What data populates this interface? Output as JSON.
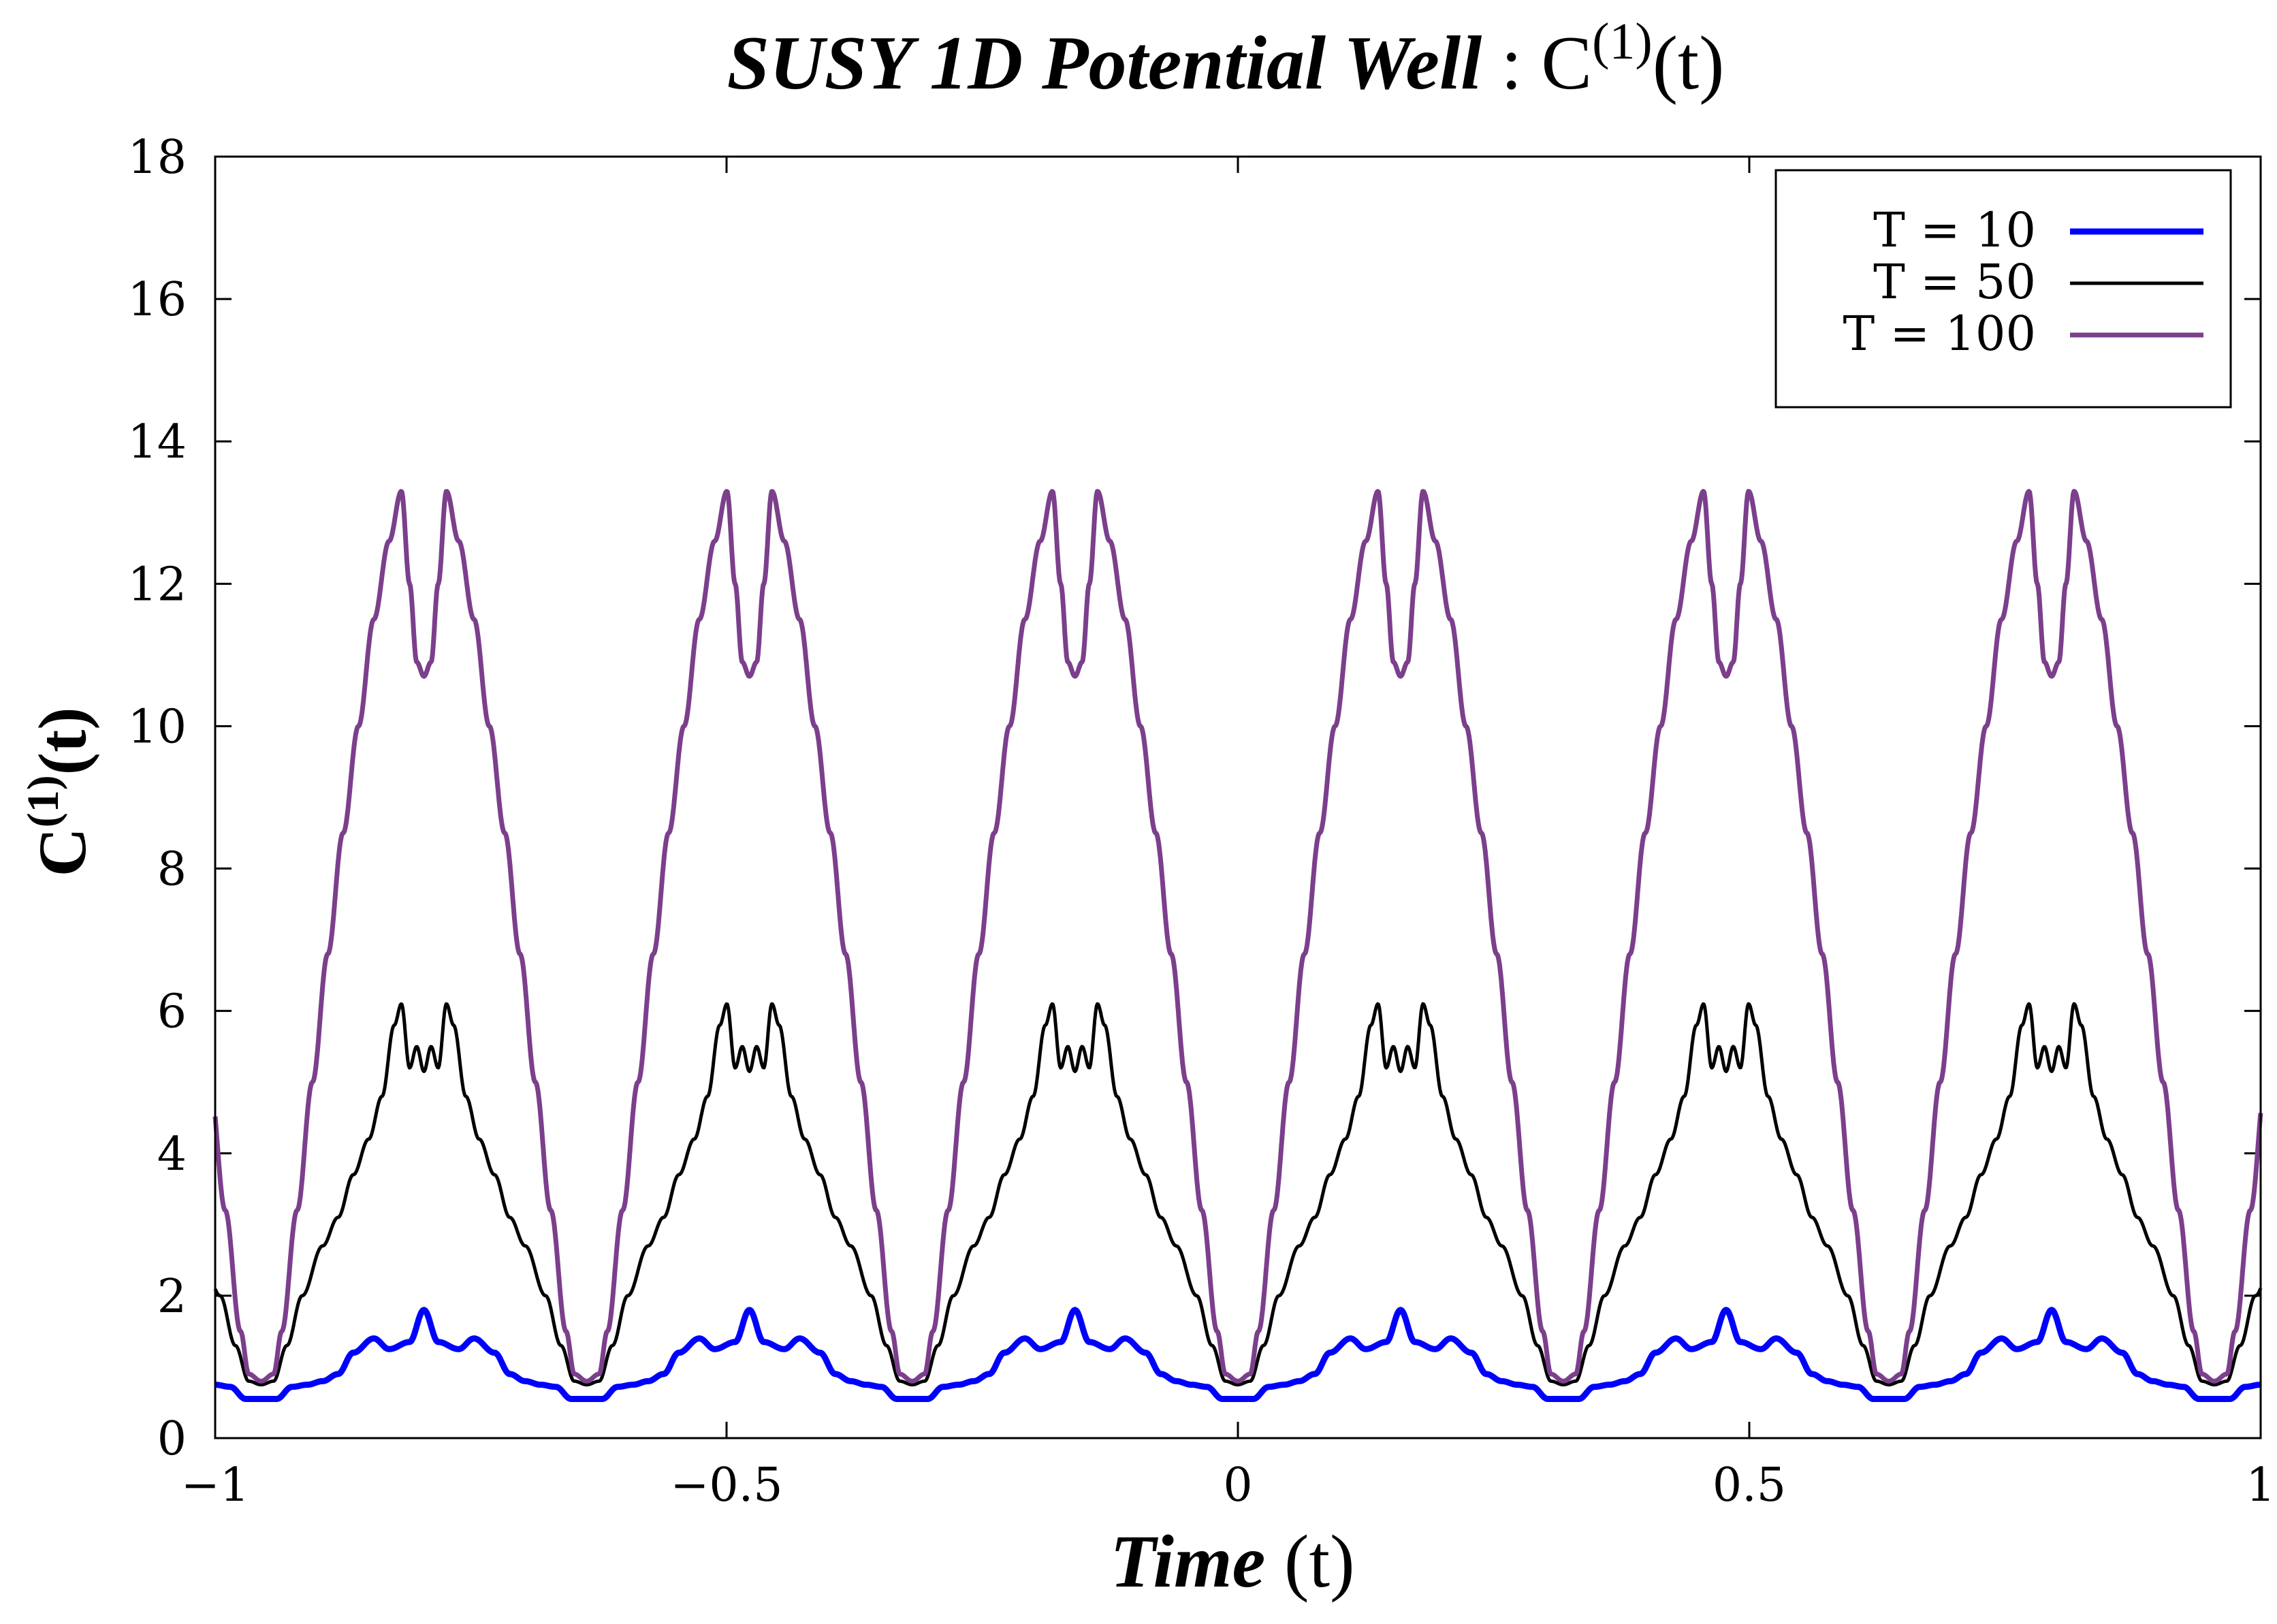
{
  "chart_data": {
    "type": "line",
    "title": {
      "italic": "SUSY 1D Potential Well",
      "separator": " : ",
      "main": "C",
      "superscript": "(1)",
      "suffix": "(t)"
    },
    "xlabel": {
      "italic": "Time",
      "rest": " (t)"
    },
    "ylabel": {
      "main": "C",
      "superscript": "(1)",
      "suffix": "(t)"
    },
    "xlim": [
      -1,
      1
    ],
    "ylim": [
      0,
      18
    ],
    "xticks": [
      -1,
      -0.5,
      0,
      0.5,
      1
    ],
    "xtick_labels": [
      "−1",
      "−0.5",
      "0",
      "0.5",
      "1"
    ],
    "yticks": [
      0,
      2,
      4,
      6,
      8,
      10,
      12,
      14,
      16,
      18
    ],
    "ytick_labels": [
      "0",
      "2",
      "4",
      "6",
      "8",
      "10",
      "12",
      "14",
      "16",
      "18"
    ],
    "grid": false,
    "legend_position": "top-right",
    "period": 0.3183,
    "minimum_x": 0,
    "series": [
      {
        "name": "T = 10",
        "color": "#0000ff",
        "profile": [
          [
            0.0,
            0.55
          ],
          [
            0.015,
            0.55
          ],
          [
            0.03,
            0.72
          ],
          [
            0.045,
            0.75
          ],
          [
            0.06,
            0.8
          ],
          [
            0.075,
            0.9
          ],
          [
            0.09,
            1.2
          ],
          [
            0.11,
            1.4
          ],
          [
            0.125,
            1.25
          ],
          [
            0.145,
            1.35
          ],
          [
            0.159,
            1.8
          ],
          [
            0.173,
            1.35
          ],
          [
            0.193,
            1.25
          ],
          [
            0.208,
            1.4
          ],
          [
            0.228,
            1.2
          ],
          [
            0.243,
            0.9
          ],
          [
            0.258,
            0.8
          ],
          [
            0.273,
            0.75
          ],
          [
            0.288,
            0.72
          ],
          [
            0.303,
            0.55
          ],
          [
            0.318,
            0.55
          ]
        ]
      },
      {
        "name": "T = 50",
        "color": "#000000",
        "profile": [
          [
            0.0,
            0.75
          ],
          [
            0.012,
            0.8
          ],
          [
            0.025,
            1.3
          ],
          [
            0.04,
            2.0
          ],
          [
            0.06,
            2.7
          ],
          [
            0.075,
            3.1
          ],
          [
            0.09,
            3.7
          ],
          [
            0.105,
            4.2
          ],
          [
            0.118,
            4.8
          ],
          [
            0.13,
            5.8
          ],
          [
            0.137,
            6.1
          ],
          [
            0.145,
            5.2
          ],
          [
            0.152,
            5.5
          ],
          [
            0.159,
            5.15
          ],
          [
            0.166,
            5.5
          ],
          [
            0.173,
            5.2
          ],
          [
            0.181,
            6.1
          ],
          [
            0.188,
            5.8
          ],
          [
            0.2,
            4.8
          ],
          [
            0.213,
            4.2
          ],
          [
            0.228,
            3.7
          ],
          [
            0.243,
            3.1
          ],
          [
            0.258,
            2.7
          ],
          [
            0.278,
            2.0
          ],
          [
            0.293,
            1.3
          ],
          [
            0.306,
            0.8
          ],
          [
            0.318,
            0.75
          ]
        ]
      },
      {
        "name": "T = 100",
        "color": "#7b3f8c",
        "profile": [
          [
            0.0,
            0.8
          ],
          [
            0.012,
            0.9
          ],
          [
            0.02,
            1.5
          ],
          [
            0.035,
            3.2
          ],
          [
            0.05,
            5.0
          ],
          [
            0.065,
            6.8
          ],
          [
            0.08,
            8.5
          ],
          [
            0.095,
            10.0
          ],
          [
            0.11,
            11.5
          ],
          [
            0.125,
            12.6
          ],
          [
            0.137,
            13.3
          ],
          [
            0.145,
            12.0
          ],
          [
            0.152,
            10.9
          ],
          [
            0.159,
            10.7
          ],
          [
            0.166,
            10.9
          ],
          [
            0.173,
            12.0
          ],
          [
            0.181,
            13.3
          ],
          [
            0.193,
            12.6
          ],
          [
            0.208,
            11.5
          ],
          [
            0.223,
            10.0
          ],
          [
            0.238,
            8.5
          ],
          [
            0.253,
            6.8
          ],
          [
            0.268,
            5.0
          ],
          [
            0.283,
            3.2
          ],
          [
            0.298,
            1.5
          ],
          [
            0.306,
            0.9
          ],
          [
            0.318,
            0.8
          ]
        ]
      }
    ]
  }
}
